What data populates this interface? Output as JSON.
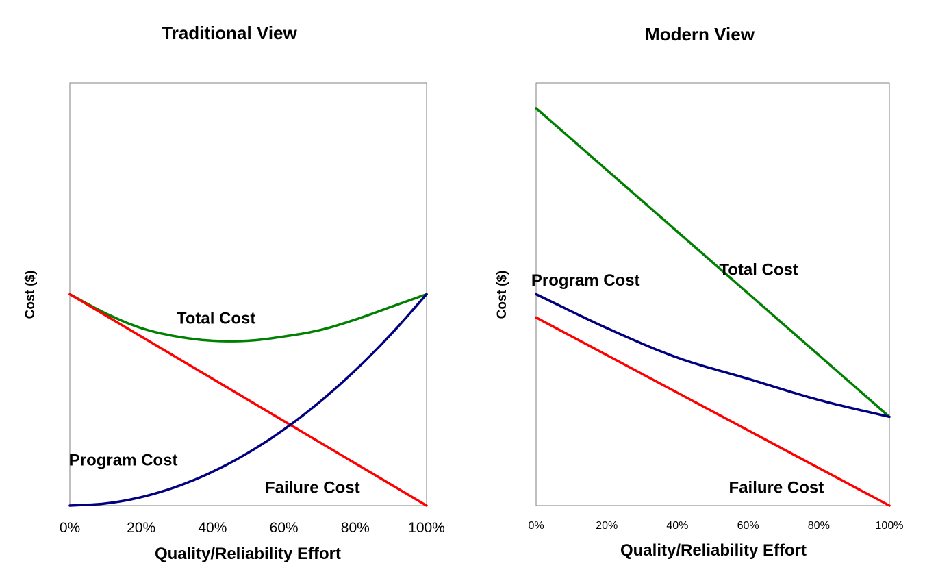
{
  "chart_data": [
    {
      "type": "line",
      "title": "Traditional View",
      "xlabel": "Quality/Reliability Effort",
      "ylabel": "Cost ($)",
      "xticks": [
        "0%",
        "20%",
        "40%",
        "60%",
        "80%",
        "100%"
      ],
      "xlim": [
        0,
        100
      ],
      "ylim": [
        0,
        1
      ],
      "grid": false,
      "series": [
        {
          "name": "Total Cost",
          "color": "#008000",
          "x": [
            0,
            10,
            20,
            30,
            40,
            50,
            60,
            70,
            80,
            90,
            100
          ],
          "y": [
            0.5,
            0.455,
            0.42,
            0.4,
            0.39,
            0.39,
            0.4,
            0.415,
            0.44,
            0.47,
            0.5
          ]
        },
        {
          "name": "Failure Cost",
          "color": "#ff0000",
          "x": [
            0,
            100
          ],
          "y": [
            0.5,
            0
          ]
        },
        {
          "name": "Program Cost",
          "color": "#000080",
          "x": [
            0,
            10,
            20,
            30,
            40,
            50,
            60,
            70,
            80,
            90,
            100
          ],
          "y": [
            0,
            0.005,
            0.02,
            0.045,
            0.08,
            0.125,
            0.18,
            0.245,
            0.32,
            0.405,
            0.5
          ]
        }
      ],
      "annotations": [
        {
          "text": "Total Cost",
          "x": 41,
          "y": 0.43
        },
        {
          "text": "Program Cost",
          "x": 15,
          "y": 0.095
        },
        {
          "text": "Failure Cost",
          "x": 68,
          "y": 0.03
        }
      ]
    },
    {
      "type": "line",
      "title": "Modern View",
      "xlabel": "Quality/Reliability Effort",
      "ylabel": "Cost ($)",
      "xticks": [
        "0%",
        "20%",
        "40%",
        "60%",
        "80%",
        "100%"
      ],
      "xlim": [
        0,
        100
      ],
      "ylim": [
        0,
        1
      ],
      "grid": false,
      "series": [
        {
          "name": "Total Cost",
          "color": "#008000",
          "x": [
            0,
            100
          ],
          "y": [
            0.94,
            0.21
          ]
        },
        {
          "name": "Program Cost",
          "color": "#000080",
          "x": [
            0,
            20,
            40,
            60,
            80,
            100
          ],
          "y": [
            0.5,
            0.42,
            0.35,
            0.3,
            0.25,
            0.21
          ]
        },
        {
          "name": "Failure Cost",
          "color": "#ff0000",
          "x": [
            0,
            100
          ],
          "y": [
            0.445,
            0
          ]
        }
      ],
      "annotations": [
        {
          "text": "Total Cost",
          "x": 63,
          "y": 0.545
        },
        {
          "text": "Program Cost",
          "x": 14,
          "y": 0.52
        },
        {
          "text": "Failure Cost",
          "x": 68,
          "y": 0.03
        }
      ]
    }
  ]
}
